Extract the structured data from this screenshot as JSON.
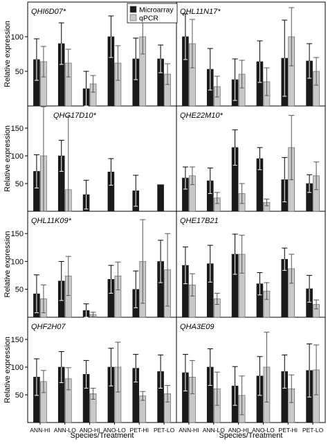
{
  "figure": {
    "y_axis_label": "Relative expression",
    "x_axis_label": "Species/Treatment",
    "categories": [
      "ANN-HI",
      "ANN-LO",
      "ANO-HI",
      "ANO-LO",
      "PET-HI",
      "PET-LO"
    ],
    "legend": [
      {
        "name": "Microarray",
        "color": "#1a1a1a"
      },
      {
        "name": "qPCR",
        "color": "#c8c8c8"
      }
    ],
    "legend_placement": "top-center"
  },
  "chart_data": [
    {
      "type": "bar",
      "title": "QHI6D07*",
      "ylim": [
        0,
        150
      ],
      "yticks": [
        50,
        100
      ],
      "categories": [
        "ANN-HI",
        "ANN-LO",
        "ANO-HI",
        "ANO-LO",
        "PET-HI",
        "PET-LO"
      ],
      "series": [
        {
          "name": "Microarray",
          "values": [
            67,
            90,
            25,
            100,
            68,
            68
          ],
          "errors": [
            30,
            30,
            25,
            30,
            30,
            20
          ]
        },
        {
          "name": "qPCR",
          "values": [
            64,
            62,
            32,
            62,
            100,
            46
          ],
          "errors": [
            22,
            20,
            12,
            25,
            25,
            15
          ]
        }
      ]
    },
    {
      "type": "bar",
      "title": "QHL11N17*",
      "ylim": [
        0,
        150
      ],
      "yticks": [
        50,
        100
      ],
      "categories": [
        "ANN-HI",
        "ANN-LO",
        "ANO-HI",
        "ANO-LO",
        "PET-HI",
        "PET-LO"
      ],
      "series": [
        {
          "name": "Microarray",
          "values": [
            100,
            53,
            38,
            64,
            69,
            65
          ],
          "errors": [
            33,
            30,
            30,
            30,
            55,
            25
          ]
        },
        {
          "name": "qPCR",
          "values": [
            90,
            28,
            46,
            35,
            100,
            50
          ],
          "errors": [
            35,
            15,
            20,
            20,
            42,
            20
          ]
        }
      ]
    },
    {
      "type": "bar",
      "title": "QHG17D10*",
      "ylim": [
        0,
        190
      ],
      "yticks": [
        50,
        100,
        150
      ],
      "categories": [
        "ANN-HI",
        "ANN-LO",
        "ANO-HI",
        "ANO-LO",
        "PET-HI",
        "PET-LO"
      ],
      "series": [
        {
          "name": "Microarray",
          "values": [
            72,
            100,
            30,
            71,
            37,
            48
          ],
          "errors": [
            30,
            28,
            26,
            24,
            28,
            0
          ]
        },
        {
          "name": "qPCR",
          "values": [
            100,
            39,
            null,
            null,
            null,
            null
          ],
          "errors": [
            100,
            132,
            0,
            0,
            0,
            0
          ]
        }
      ]
    },
    {
      "type": "bar",
      "title": "QHE22M10*",
      "ylim": [
        0,
        190
      ],
      "yticks": [
        50,
        100,
        150
      ],
      "categories": [
        "ANN-HI",
        "ANN-LO",
        "ANO-HI",
        "ANO-LO",
        "PET-HI",
        "PET-LO"
      ],
      "series": [
        {
          "name": "Microarray",
          "values": [
            60,
            55,
            115,
            95,
            57,
            50
          ],
          "errors": [
            20,
            23,
            32,
            20,
            40,
            16
          ]
        },
        {
          "name": "qPCR",
          "values": [
            64,
            24,
            32,
            16,
            115,
            64
          ],
          "errors": [
            16,
            10,
            18,
            6,
            58,
            25
          ]
        }
      ]
    },
    {
      "type": "bar",
      "title": "QHL11K09*",
      "ylim": [
        0,
        190
      ],
      "yticks": [
        50,
        100,
        150
      ],
      "categories": [
        "ANN-HI",
        "ANN-LO",
        "ANO-HI",
        "ANO-LO",
        "PET-HI",
        "PET-LO"
      ],
      "series": [
        {
          "name": "Microarray",
          "values": [
            42,
            65,
            12,
            68,
            50,
            100
          ],
          "errors": [
            34,
            35,
            12,
            25,
            33,
            38
          ]
        },
        {
          "name": "qPCR",
          "values": [
            33,
            74,
            5,
            74,
            100,
            85
          ],
          "errors": [
            25,
            35,
            4,
            25,
            75,
            65
          ]
        }
      ]
    },
    {
      "type": "bar",
      "title": "QHE17B21",
      "ylim": [
        0,
        190
      ],
      "yticks": [
        50,
        100,
        150
      ],
      "categories": [
        "ANN-HI",
        "ANN-LO",
        "ANO-HI",
        "ANO-LO",
        "PET-HI",
        "PET-LO"
      ],
      "series": [
        {
          "name": "Microarray",
          "values": [
            93,
            96,
            113,
            60,
            104,
            51
          ],
          "errors": [
            33,
            33,
            36,
            20,
            20,
            24
          ]
        },
        {
          "name": "qPCR",
          "values": [
            58,
            33,
            113,
            47,
            87,
            23
          ],
          "errors": [
            20,
            10,
            34,
            15,
            26,
            8
          ]
        }
      ]
    },
    {
      "type": "bar",
      "title": "QHF2H07",
      "ylim": [
        0,
        190
      ],
      "yticks": [
        50,
        100,
        150
      ],
      "categories": [
        "ANN-HI",
        "ANN-LO",
        "ANO-HI",
        "ANO-LO",
        "PET-HI",
        "PET-LO"
      ],
      "series": [
        {
          "name": "Microarray",
          "values": [
            82,
            100,
            87,
            100,
            98,
            92
          ],
          "errors": [
            33,
            28,
            25,
            34,
            25,
            30
          ]
        },
        {
          "name": "qPCR",
          "values": [
            74,
            79,
            52,
            100,
            48,
            52
          ],
          "errors": [
            20,
            20,
            10,
            45,
            8,
            15
          ]
        }
      ]
    },
    {
      "type": "bar",
      "title": "QHA3E09",
      "ylim": [
        0,
        190
      ],
      "yticks": [
        50,
        100,
        150
      ],
      "categories": [
        "ANN-HI",
        "ANN-LO",
        "ANO-HI",
        "ANO-LO",
        "PET-HI",
        "PET-LO"
      ],
      "series": [
        {
          "name": "Microarray",
          "values": [
            90,
            100,
            66,
            84,
            92,
            94
          ],
          "errors": [
            33,
            33,
            35,
            35,
            30,
            48
          ]
        },
        {
          "name": "qPCR",
          "values": [
            82,
            61,
            49,
            100,
            61,
            95
          ],
          "errors": [
            30,
            30,
            35,
            63,
            25,
            45
          ]
        }
      ]
    }
  ]
}
